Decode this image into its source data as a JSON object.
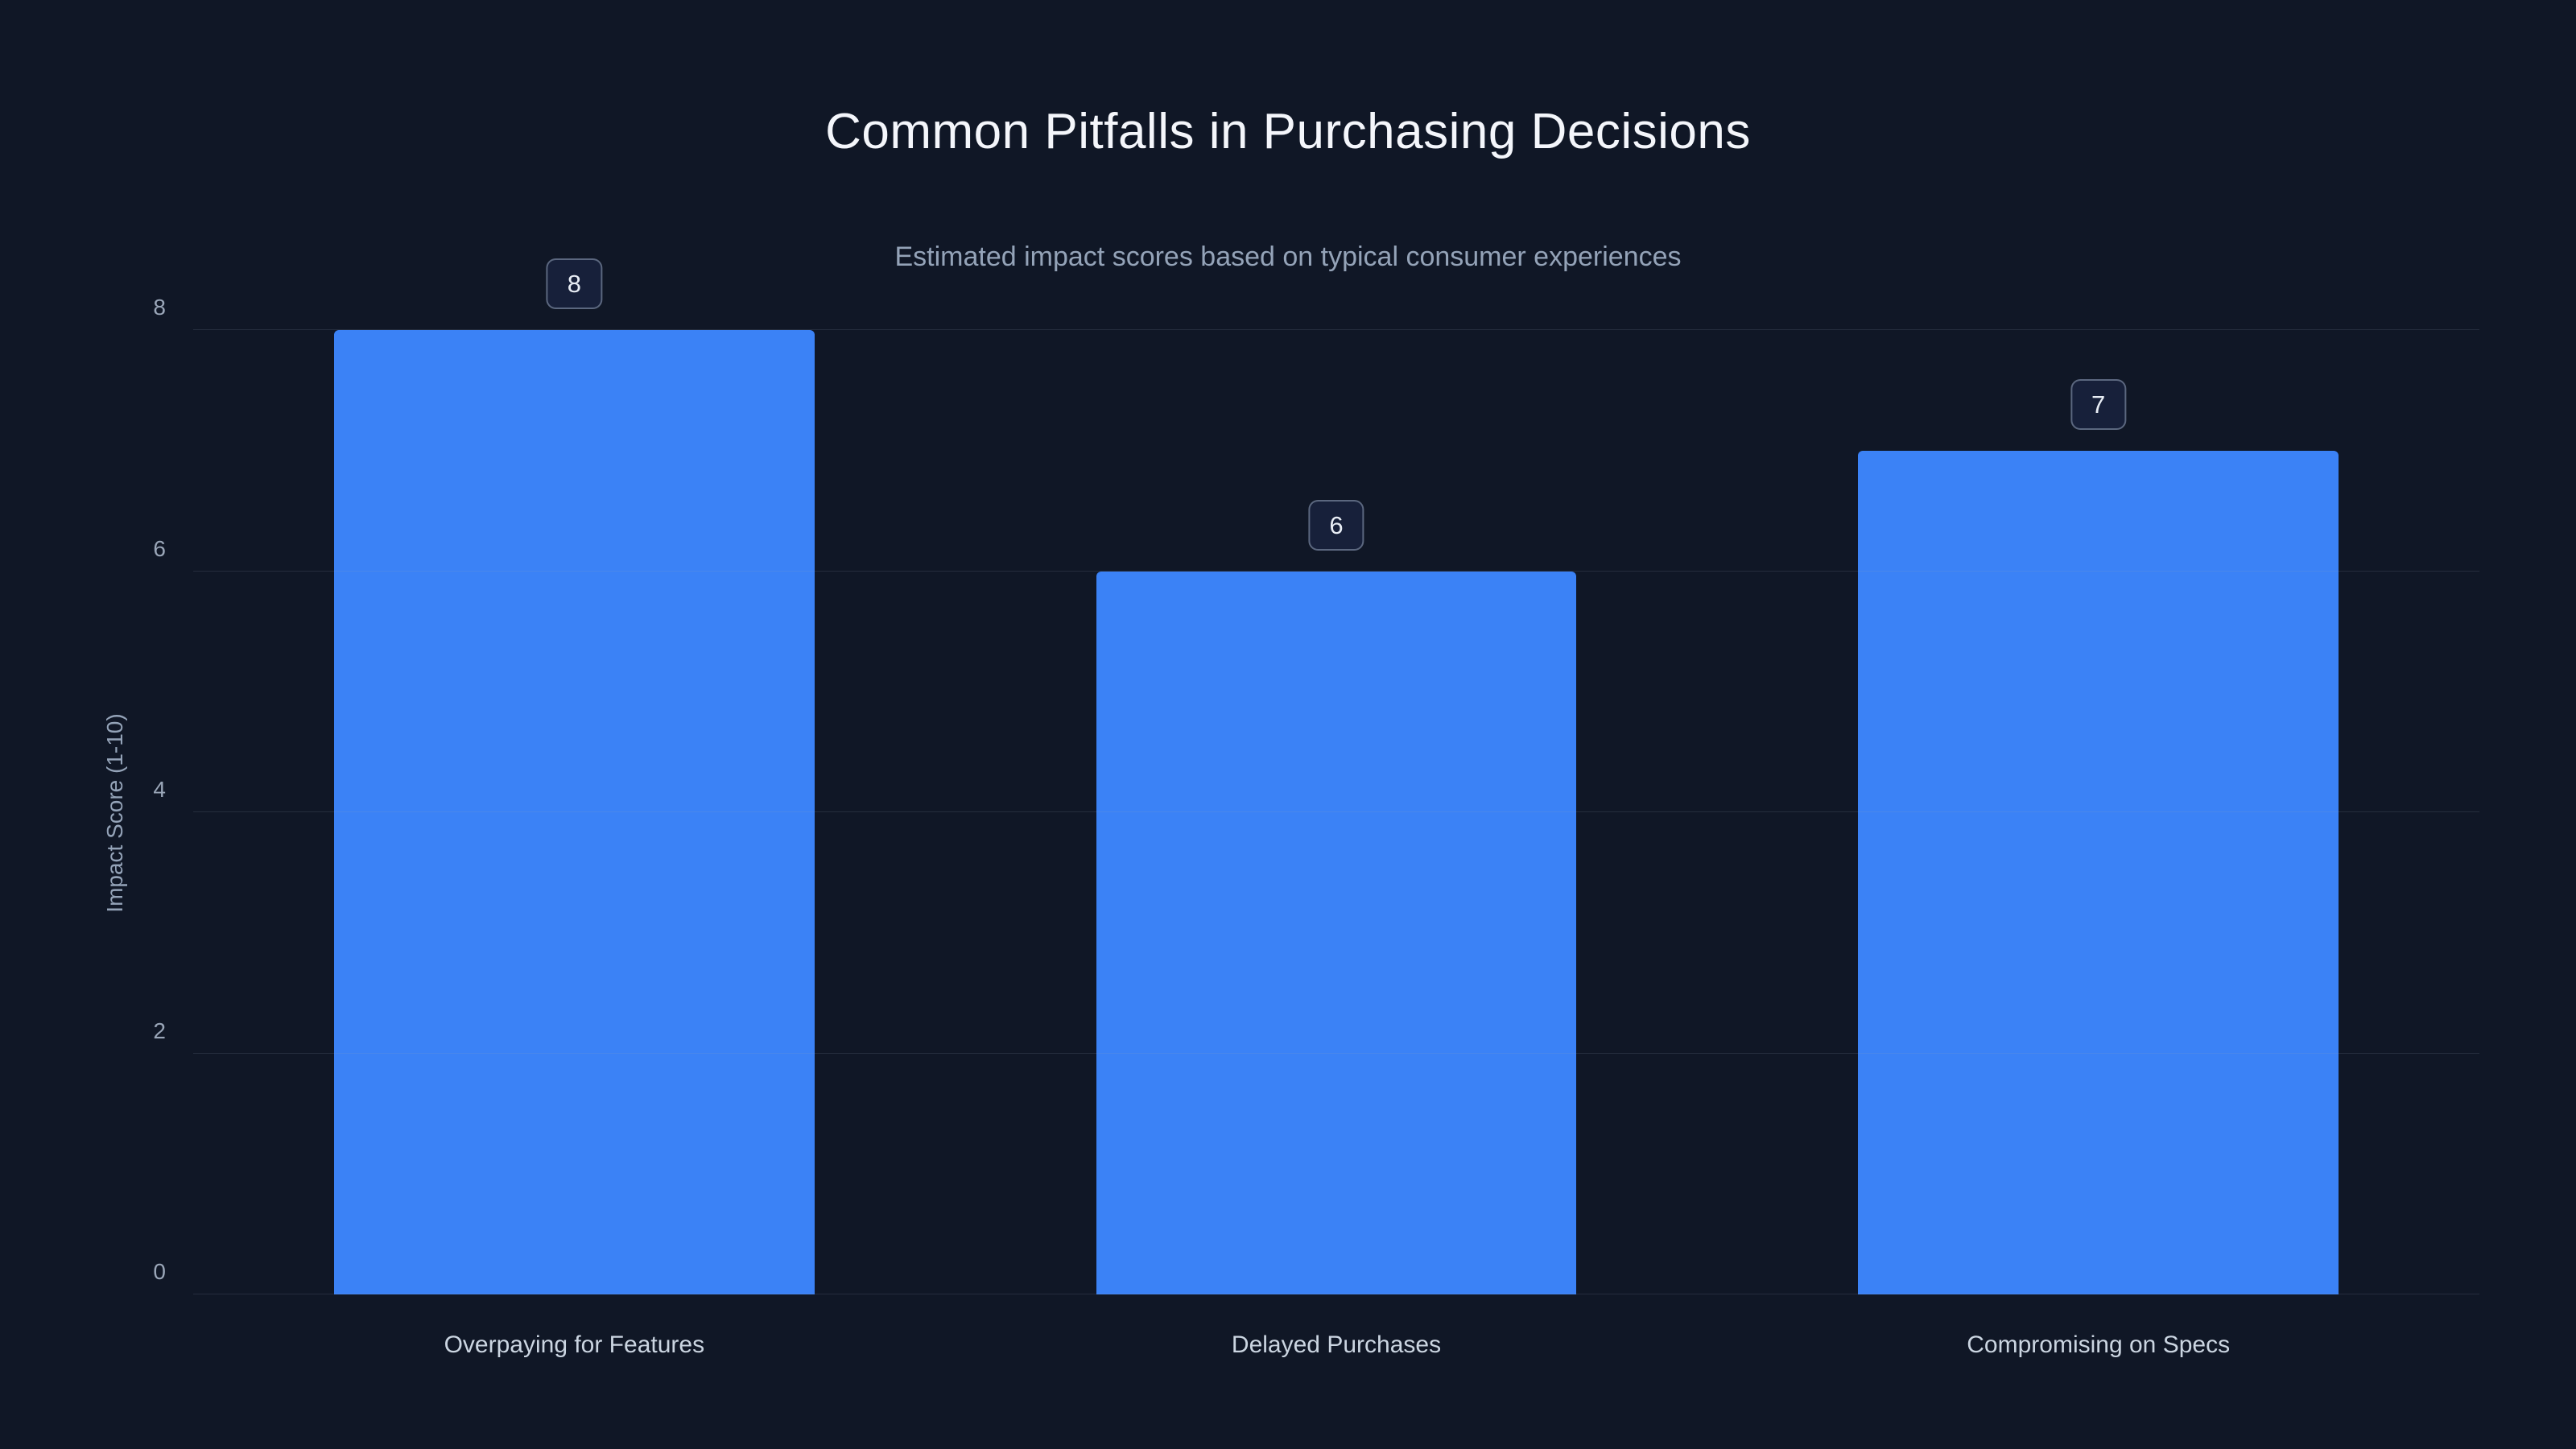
{
  "chart_data": {
    "type": "bar",
    "title": "Common Pitfalls in Purchasing Decisions",
    "subtitle": "Estimated impact scores based on typical consumer experiences",
    "categories": [
      "Overpaying for Features",
      "Delayed Purchases",
      "Compromising on Specs"
    ],
    "values": [
      8,
      6,
      7
    ],
    "xlabel": "",
    "ylabel": "Impact Score (1-10)",
    "ylim": [
      0,
      8
    ],
    "yticks": [
      0,
      2,
      4,
      6,
      8
    ],
    "grid": true,
    "legend": "none",
    "colors": {
      "bar": "#3b82f6",
      "background": "#101726",
      "title_text": "#f4f6fb",
      "subtitle_text": "#94a3b8",
      "axis_text": "#9aa6b8",
      "gridline": "rgba(148,163,184,0.16)"
    }
  }
}
